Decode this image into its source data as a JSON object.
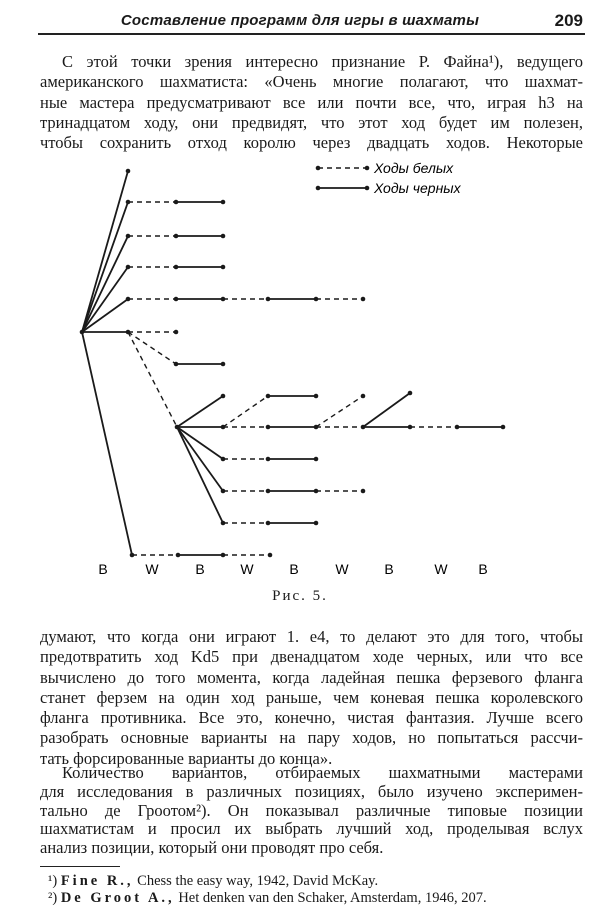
{
  "header": {
    "running_title": "Составление программ для игры в шахматы",
    "page_number": "209"
  },
  "paragraph1": [
    "С этой точки зрения интересно признание Р. Файна¹), ведущего",
    "американского шахматиста: «Очень многие полагают, что шахмат-",
    "ные мастера предусматривают все или почти все, что, играя h3 на",
    "тринадцатом ходу, они предвидят, что этот ход будет им полезен,",
    "чтобы сохранить отход королю через двадцать ходов. Некоторые"
  ],
  "figure": {
    "legend": [
      {
        "label": "Ходы белых",
        "style": "dashed"
      },
      {
        "label": "Ходы черных",
        "style": "solid"
      }
    ],
    "axis_labels": [
      "B",
      "W",
      "B",
      "W",
      "B",
      "W",
      "B",
      "W",
      "B"
    ],
    "caption": "Рис. 5.",
    "line_color": "#1a1a1a"
  },
  "paragraph2": [
    "думают, что когда они играют 1. e4, то делают это для того, чтобы",
    "предотвратить ход Kd5 при двенадцатом ходе черных, или что все",
    "вычислено до того момента, когда ладейная пешка ферзевого фланга",
    "станет ферзем на один ход раньше, чем коневая пешка королевского",
    "фланга противника. Все это, конечно, чистая фантазия. Лучше всего",
    "разобрать основные варианты на пару ходов, но попытаться рассчи-",
    "тать форсированные варианты до конца»."
  ],
  "paragraph3": [
    "Количество вариантов, отбираемых шахматными мастерами",
    "для исследования в различных позициях, было изучено эксперимен-",
    "тально де Гроотом²). Он показывал различные типовые позиции",
    "шахматистам и просил их выбрать лучший ход, проделывая вслух",
    "анализ позиции, который они проводят про себя."
  ],
  "footnotes": [
    {
      "marker": "¹)",
      "author": "Fine R.,",
      "text": "Chess the easy way, 1942, David McKay."
    },
    {
      "marker": "²)",
      "author": "De Groot A.,",
      "text": "Het denken van den Schaker, Amsterdam, 1946, 207."
    }
  ]
}
